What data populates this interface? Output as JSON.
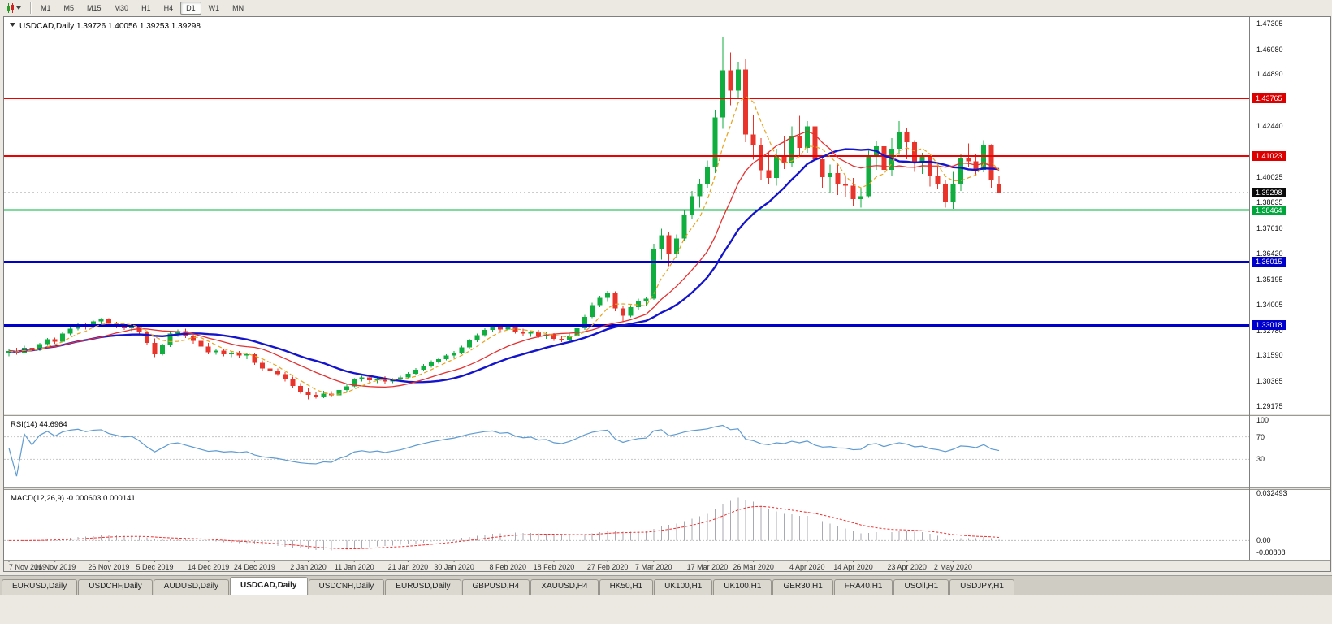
{
  "colors": {
    "up": "#0fae3e",
    "down": "#e8342a",
    "rsi_line": "#5e9bd2",
    "macd_hist": "#a9a9b2",
    "macd_signal": "#f03030"
  },
  "toolbar": {
    "timeframes": [
      "M1",
      "M5",
      "M15",
      "M30",
      "H1",
      "H4",
      "D1",
      "W1",
      "MN"
    ],
    "active": "D1"
  },
  "chart": {
    "title": "USDCAD,Daily 1.39726 1.40056 1.39253 1.39298",
    "symbol": "USDCAD",
    "period": "Daily"
  },
  "price_axis": {
    "ticks": [
      "1.47305",
      "1.46080",
      "1.44890",
      "1.42440",
      "1.40025",
      "1.38835",
      "1.37610",
      "1.36420",
      "1.35195",
      "1.34005",
      "1.32780",
      "1.31590",
      "1.30365",
      "1.29175"
    ],
    "current_value": "1.39298",
    "badges": [
      {
        "value": "1.43765",
        "color": "red"
      },
      {
        "value": "1.41023",
        "color": "red"
      },
      {
        "value": "1.39298",
        "color": "black"
      },
      {
        "value": "1.38464",
        "color": "green"
      },
      {
        "value": "1.36015",
        "color": "blue"
      },
      {
        "value": "1.33018",
        "color": "blue"
      }
    ]
  },
  "levels": [
    {
      "price": "1.43765",
      "color": "#ee0000",
      "thickness": 2
    },
    {
      "price": "1.41023",
      "color": "#ee0000",
      "thickness": 2
    },
    {
      "price": "1.38464",
      "color": "#00b43c",
      "thickness": 2
    },
    {
      "price": "1.36015",
      "color": "#0000cd",
      "thickness": 3
    },
    {
      "price": "1.33018",
      "color": "#0000cd",
      "thickness": 3
    }
  ],
  "indicators": {
    "rsi": {
      "label": "RSI(14) 44.6964",
      "period": 14,
      "value": "44.6964",
      "levels": [
        100,
        70,
        30
      ]
    },
    "macd": {
      "label": "MACD(12,26,9) -0.000603 0.000141",
      "fast": 12,
      "slow": 26,
      "signal": 9,
      "macd_value": "-0.000603",
      "signal_value": "0.000141",
      "axis_labels": [
        "0.032493",
        "0.00",
        "-0.00808"
      ]
    }
  },
  "chart_data": {
    "type": "candlestick",
    "symbol": "USDCAD",
    "timeframe": "Daily",
    "last_ohlc": {
      "open": 1.39726,
      "high": 1.40056,
      "low": 1.39253,
      "close": 1.39298
    },
    "y_range": [
      1.2884,
      1.476
    ],
    "overlays": [
      {
        "type": "sma",
        "period": 5,
        "color": "#e8a31e",
        "style": "dashed",
        "width": 1.2
      },
      {
        "type": "sma",
        "period": 13,
        "color": "#e53030",
        "style": "solid",
        "width": 1.3
      },
      {
        "type": "sma",
        "period": 21,
        "color": "#1414cc",
        "style": "solid",
        "width": 2.4
      }
    ],
    "candles": [
      [
        1.3168,
        1.3192,
        1.3155,
        1.318
      ],
      [
        1.318,
        1.3195,
        1.3162,
        1.3172
      ],
      [
        1.3172,
        1.3205,
        1.3168,
        1.3196
      ],
      [
        1.3196,
        1.3204,
        1.3175,
        1.3185
      ],
      [
        1.3185,
        1.3218,
        1.318,
        1.3212
      ],
      [
        1.3212,
        1.3242,
        1.3205,
        1.3236
      ],
      [
        1.3236,
        1.3244,
        1.3215,
        1.3225
      ],
      [
        1.3225,
        1.3268,
        1.322,
        1.3262
      ],
      [
        1.3262,
        1.3292,
        1.3255,
        1.3286
      ],
      [
        1.3286,
        1.331,
        1.3278,
        1.3302
      ],
      [
        1.3302,
        1.3312,
        1.3282,
        1.3292
      ],
      [
        1.3292,
        1.3325,
        1.3288,
        1.332
      ],
      [
        1.332,
        1.3336,
        1.3305,
        1.3329
      ],
      [
        1.3329,
        1.3335,
        1.33,
        1.3309
      ],
      [
        1.3309,
        1.3318,
        1.3288,
        1.3298
      ],
      [
        1.3298,
        1.3312,
        1.328,
        1.3288
      ],
      [
        1.3288,
        1.3302,
        1.3275,
        1.3297
      ],
      [
        1.3297,
        1.3304,
        1.3258,
        1.3268
      ],
      [
        1.3268,
        1.3275,
        1.3208,
        1.3218
      ],
      [
        1.3218,
        1.324,
        1.3152,
        1.3165
      ],
      [
        1.3165,
        1.3215,
        1.3158,
        1.3208
      ],
      [
        1.3208,
        1.327,
        1.32,
        1.3262
      ],
      [
        1.3262,
        1.3282,
        1.3248,
        1.3275
      ],
      [
        1.3275,
        1.3285,
        1.3242,
        1.3252
      ],
      [
        1.3252,
        1.3258,
        1.3215,
        1.3228
      ],
      [
        1.3228,
        1.3238,
        1.3192,
        1.3202
      ],
      [
        1.3202,
        1.3218,
        1.3165,
        1.3175
      ],
      [
        1.3175,
        1.3192,
        1.3162,
        1.3182
      ],
      [
        1.3182,
        1.3188,
        1.3155,
        1.3165
      ],
      [
        1.3165,
        1.3178,
        1.3152,
        1.317
      ],
      [
        1.317,
        1.318,
        1.3148,
        1.3158
      ],
      [
        1.3158,
        1.3172,
        1.3142,
        1.3165
      ],
      [
        1.3165,
        1.317,
        1.3115,
        1.3125
      ],
      [
        1.3125,
        1.3135,
        1.3088,
        1.3098
      ],
      [
        1.3098,
        1.311,
        1.3075,
        1.3085
      ],
      [
        1.3085,
        1.3098,
        1.3062,
        1.307
      ],
      [
        1.307,
        1.308,
        1.3035,
        1.3045
      ],
      [
        1.3045,
        1.3058,
        1.3005,
        1.3015
      ],
      [
        1.3015,
        1.3028,
        1.2978,
        1.2988
      ],
      [
        1.2988,
        1.3005,
        1.2952,
        1.2972
      ],
      [
        1.2972,
        1.2985,
        1.2955,
        1.2965
      ],
      [
        1.2965,
        1.2992,
        1.2958,
        1.2978
      ],
      [
        1.2978,
        1.299,
        1.2962,
        1.297
      ],
      [
        1.297,
        1.3002,
        1.2965,
        1.2995
      ],
      [
        1.2995,
        1.3022,
        1.2988,
        1.3012
      ],
      [
        1.3012,
        1.3052,
        1.3008,
        1.3045
      ],
      [
        1.3045,
        1.3062,
        1.3035,
        1.3055
      ],
      [
        1.3055,
        1.3065,
        1.3032,
        1.3042
      ],
      [
        1.3042,
        1.3058,
        1.3028,
        1.305
      ],
      [
        1.305,
        1.306,
        1.3025,
        1.3035
      ],
      [
        1.3035,
        1.3052,
        1.3028,
        1.3045
      ],
      [
        1.3045,
        1.3062,
        1.3038,
        1.3055
      ],
      [
        1.3055,
        1.308,
        1.3048,
        1.3072
      ],
      [
        1.3072,
        1.31,
        1.3065,
        1.3092
      ],
      [
        1.3092,
        1.3118,
        1.3085,
        1.311
      ],
      [
        1.311,
        1.3135,
        1.3102,
        1.3128
      ],
      [
        1.3128,
        1.315,
        1.312,
        1.3142
      ],
      [
        1.3142,
        1.3165,
        1.3135,
        1.3158
      ],
      [
        1.3158,
        1.318,
        1.3148,
        1.3172
      ],
      [
        1.3172,
        1.3205,
        1.3165,
        1.3198
      ],
      [
        1.3198,
        1.3238,
        1.3192,
        1.323
      ],
      [
        1.323,
        1.3262,
        1.3222,
        1.3255
      ],
      [
        1.3255,
        1.3288,
        1.3248,
        1.328
      ],
      [
        1.328,
        1.3302,
        1.327,
        1.3295
      ],
      [
        1.3295,
        1.3305,
        1.3272,
        1.3282
      ],
      [
        1.3282,
        1.33,
        1.3268,
        1.3292
      ],
      [
        1.3292,
        1.3298,
        1.3262,
        1.3272
      ],
      [
        1.3272,
        1.3285,
        1.3252,
        1.3262
      ],
      [
        1.3262,
        1.3278,
        1.3248,
        1.327
      ],
      [
        1.327,
        1.328,
        1.3242,
        1.3252
      ],
      [
        1.3252,
        1.3268,
        1.3238,
        1.3258
      ],
      [
        1.3258,
        1.3265,
        1.3228,
        1.3238
      ],
      [
        1.3238,
        1.3252,
        1.3222,
        1.3232
      ],
      [
        1.3232,
        1.3262,
        1.3225,
        1.3252
      ],
      [
        1.3252,
        1.3295,
        1.3245,
        1.3288
      ],
      [
        1.3288,
        1.3352,
        1.328,
        1.3342
      ],
      [
        1.3342,
        1.3408,
        1.3335,
        1.3398
      ],
      [
        1.3398,
        1.3442,
        1.3388,
        1.3432
      ],
      [
        1.3432,
        1.3465,
        1.3412,
        1.3455
      ],
      [
        1.3455,
        1.3462,
        1.3368,
        1.3382
      ],
      [
        1.3382,
        1.3395,
        1.3318,
        1.3348
      ],
      [
        1.3348,
        1.3398,
        1.334,
        1.3388
      ],
      [
        1.3388,
        1.3428,
        1.3372,
        1.3418
      ],
      [
        1.3418,
        1.3438,
        1.3392,
        1.3428
      ],
      [
        1.3428,
        1.3688,
        1.3422,
        1.3662
      ],
      [
        1.3662,
        1.3758,
        1.3612,
        1.3728
      ],
      [
        1.3728,
        1.3742,
        1.3582,
        1.3642
      ],
      [
        1.3642,
        1.3732,
        1.362,
        1.3712
      ],
      [
        1.3712,
        1.3848,
        1.37,
        1.3825
      ],
      [
        1.3825,
        1.3938,
        1.3802,
        1.3912
      ],
      [
        1.3912,
        1.3995,
        1.3858,
        1.3972
      ],
      [
        1.3972,
        1.4082,
        1.3952,
        1.4052
      ],
      [
        1.4052,
        1.4322,
        1.4022,
        1.4285
      ],
      [
        1.4285,
        1.4668,
        1.4232,
        1.4508
      ],
      [
        1.4508,
        1.4592,
        1.4342,
        1.4412
      ],
      [
        1.4412,
        1.4548,
        1.4372,
        1.4512
      ],
      [
        1.4512,
        1.456,
        1.4168,
        1.4205
      ],
      [
        1.4205,
        1.4295,
        1.4085,
        1.4152
      ],
      [
        1.4152,
        1.4188,
        1.3992,
        1.4035
      ],
      [
        1.4035,
        1.4122,
        1.3968,
        1.3998
      ],
      [
        1.3998,
        1.4138,
        1.3962,
        1.4098
      ],
      [
        1.4098,
        1.4198,
        1.4042,
        1.4068
      ],
      [
        1.4068,
        1.4242,
        1.4052,
        1.4198
      ],
      [
        1.4198,
        1.4292,
        1.4102,
        1.4142
      ],
      [
        1.4142,
        1.4268,
        1.4118,
        1.4242
      ],
      [
        1.4242,
        1.4252,
        1.4028,
        1.4088
      ],
      [
        1.4088,
        1.4102,
        1.3952,
        1.4002
      ],
      [
        1.4002,
        1.4062,
        1.3928,
        1.4022
      ],
      [
        1.4022,
        1.4072,
        1.3918,
        1.3968
      ],
      [
        1.3968,
        1.4012,
        1.3908,
        1.3962
      ],
      [
        1.3962,
        1.3998,
        1.3868,
        1.3898
      ],
      [
        1.3898,
        1.3952,
        1.3858,
        1.3912
      ],
      [
        1.3912,
        1.4128,
        1.3905,
        1.4098
      ],
      [
        1.4098,
        1.4175,
        1.4038,
        1.4148
      ],
      [
        1.4148,
        1.4158,
        1.3992,
        1.4038
      ],
      [
        1.4038,
        1.4188,
        1.4008,
        1.4138
      ],
      [
        1.4138,
        1.4268,
        1.4108,
        1.4215
      ],
      [
        1.4215,
        1.4238,
        1.4088,
        1.4168
      ],
      [
        1.4168,
        1.4178,
        1.4028,
        1.4072
      ],
      [
        1.4072,
        1.4118,
        1.4018,
        1.4098
      ],
      [
        1.4098,
        1.4105,
        1.3958,
        1.4008
      ],
      [
        1.4008,
        1.4048,
        1.3948,
        1.3968
      ],
      [
        1.3968,
        1.3988,
        1.3858,
        1.3888
      ],
      [
        1.3888,
        1.4028,
        1.3852,
        1.3968
      ],
      [
        1.3968,
        1.4112,
        1.3938,
        1.4095
      ],
      [
        1.4095,
        1.4162,
        1.4048,
        1.4078
      ],
      [
        1.4078,
        1.4115,
        1.4008,
        1.4038
      ],
      [
        1.4038,
        1.4178,
        1.4025,
        1.4152
      ],
      [
        1.4152,
        1.4158,
        1.3952,
        1.3992
      ],
      [
        1.39726,
        1.40056,
        1.39253,
        1.39298
      ]
    ],
    "date_ticks": [
      {
        "i": 0,
        "label": "7 Nov 2019"
      },
      {
        "i": 6,
        "label": "16 Nov 2019"
      },
      {
        "i": 13,
        "label": "26 Nov 2019"
      },
      {
        "i": 19,
        "label": "5 Dec 2019"
      },
      {
        "i": 26,
        "label": "14 Dec 2019"
      },
      {
        "i": 32,
        "label": "24 Dec 2019"
      },
      {
        "i": 39,
        "label": "2 Jan 2020"
      },
      {
        "i": 45,
        "label": "11 Jan 2020"
      },
      {
        "i": 52,
        "label": "21 Jan 2020"
      },
      {
        "i": 58,
        "label": "30 Jan 2020"
      },
      {
        "i": 65,
        "label": "8 Feb 2020"
      },
      {
        "i": 71,
        "label": "18 Feb 2020"
      },
      {
        "i": 78,
        "label": "27 Feb 2020"
      },
      {
        "i": 84,
        "label": "7 Mar 2020"
      },
      {
        "i": 91,
        "label": "17 Mar 2020"
      },
      {
        "i": 97,
        "label": "26 Mar 2020"
      },
      {
        "i": 104,
        "label": "4 Apr 2020"
      },
      {
        "i": 110,
        "label": "14 Apr 2020"
      },
      {
        "i": 117,
        "label": "23 Apr 2020"
      },
      {
        "i": 123,
        "label": "2 May 2020"
      }
    ]
  },
  "tabs": [
    {
      "label": "EURUSD,Daily"
    },
    {
      "label": "USDCHF,Daily"
    },
    {
      "label": "AUDUSD,Daily"
    },
    {
      "label": "USDCAD,Daily",
      "active": true
    },
    {
      "label": "USDCNH,Daily"
    },
    {
      "label": "EURUSD,Daily"
    },
    {
      "label": "GBPUSD,H4"
    },
    {
      "label": "XAUUSD,H4"
    },
    {
      "label": "HK50,H1"
    },
    {
      "label": "UK100,H1"
    },
    {
      "label": "UK100,H1"
    },
    {
      "label": "GER30,H1"
    },
    {
      "label": "FRA40,H1"
    },
    {
      "label": "USOil,H1"
    },
    {
      "label": "USDJPY,H1"
    }
  ]
}
